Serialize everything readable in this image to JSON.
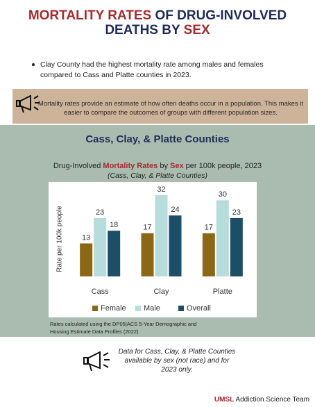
{
  "header": {
    "title_parts": [
      "MORTALITY RATES",
      "OF DRUG-INVOLVED",
      "DEATHS BY",
      "SEX"
    ],
    "bullet": "Clay County had the highest mortality rate among males and females compared to Cass and Platte counties in 2023.",
    "callout": "Mortality rates provide an estimate of how often deaths occur in a population. This makes it easier to compare the outcomes of groups with different population sizes."
  },
  "section_title": "Cass, Clay, & Platte Counties",
  "chart_data": {
    "type": "bar",
    "title_parts": [
      "Drug-Involved ",
      "Mortality Rates",
      " by ",
      "Sex",
      " per 100k people, 2023"
    ],
    "subtitle": "(Cass, Clay, & Platte Counties)",
    "y_label": "Rate per 100k people",
    "categories": [
      "Cass",
      "Clay",
      "Platte"
    ],
    "series": [
      {
        "name": "Female",
        "color": "#8c6716",
        "values": [
          13,
          17,
          17
        ]
      },
      {
        "name": "Male",
        "color": "#b7dcdc",
        "values": [
          23,
          32,
          30
        ]
      },
      {
        "name": "Overall",
        "color": "#1c4e68",
        "values": [
          18,
          24,
          23
        ]
      }
    ],
    "ylim": [
      0,
      35
    ],
    "grid": false,
    "legend": "bottom"
  },
  "source_note": "Rates calculated using the DP05|ACS 5-Year Demographic and Housing Estimate Data Profiles (2022)",
  "footer_note": "Data for Cass, Clay, & Platte Counties available by sex (not race) and for 2023 only.",
  "logo": {
    "brand": "UMSL",
    "team": "Addiction Science Team"
  }
}
